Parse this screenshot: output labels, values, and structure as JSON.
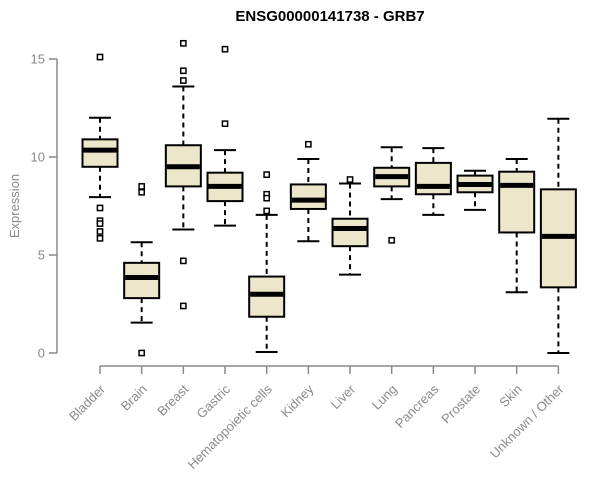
{
  "chart_data": {
    "type": "boxplot",
    "title": "ENSG00000141738 - GRB7",
    "ylabel": "Expression",
    "xlabel": "",
    "ylim": [
      0,
      15
    ],
    "yticks": [
      0,
      5,
      10,
      15
    ],
    "grid": false,
    "legend": "none",
    "categories": [
      "Bladder",
      "Brain",
      "Breast",
      "Gastric",
      "Hematopoietic cells",
      "Kidney",
      "Liver",
      "Lung",
      "Pancreas",
      "Prostate",
      "Skin",
      "Unknown / Other"
    ],
    "series": [
      {
        "name": "Bladder",
        "whisker_low": 7.95,
        "q1": 9.5,
        "median": 10.35,
        "q3": 10.9,
        "whisker_high": 12.0,
        "outliers": [
          15.1,
          7.4,
          6.75,
          6.6,
          6.2,
          5.85
        ]
      },
      {
        "name": "Brain",
        "whisker_low": 1.55,
        "q1": 2.8,
        "median": 3.85,
        "q3": 4.6,
        "whisker_high": 5.65,
        "outliers": [
          8.5,
          8.2,
          0.0
        ]
      },
      {
        "name": "Breast",
        "whisker_low": 6.3,
        "q1": 8.5,
        "median": 9.5,
        "q3": 10.6,
        "whisker_high": 13.6,
        "outliers": [
          15.8,
          14.4,
          13.9,
          4.7,
          2.4
        ]
      },
      {
        "name": "Gastric",
        "whisker_low": 6.5,
        "q1": 7.75,
        "median": 8.5,
        "q3": 9.2,
        "whisker_high": 10.35,
        "outliers": [
          15.5,
          11.7
        ]
      },
      {
        "name": "Hematopoietic cells",
        "whisker_low": 0.05,
        "q1": 1.85,
        "median": 3.0,
        "q3": 3.9,
        "whisker_high": 7.05,
        "outliers": [
          9.1,
          8.1,
          7.9,
          7.25
        ]
      },
      {
        "name": "Kidney",
        "whisker_low": 5.7,
        "q1": 7.35,
        "median": 7.8,
        "q3": 8.6,
        "whisker_high": 9.9,
        "outliers": [
          10.65
        ]
      },
      {
        "name": "Liver",
        "whisker_low": 4.0,
        "q1": 5.45,
        "median": 6.35,
        "q3": 6.85,
        "whisker_high": 8.65,
        "outliers": [
          8.85
        ]
      },
      {
        "name": "Lung",
        "whisker_low": 7.85,
        "q1": 8.5,
        "median": 9.0,
        "q3": 9.45,
        "whisker_high": 10.5,
        "outliers": [
          5.75
        ]
      },
      {
        "name": "Pancreas",
        "whisker_low": 7.05,
        "q1": 8.1,
        "median": 8.5,
        "q3": 9.7,
        "whisker_high": 10.45,
        "outliers": []
      },
      {
        "name": "Prostate",
        "whisker_low": 7.3,
        "q1": 8.2,
        "median": 8.6,
        "q3": 9.05,
        "whisker_high": 9.3,
        "outliers": []
      },
      {
        "name": "Skin",
        "whisker_low": 3.1,
        "q1": 6.15,
        "median": 8.55,
        "q3": 9.25,
        "whisker_high": 9.9,
        "outliers": []
      },
      {
        "name": "Unknown / Other",
        "whisker_low": 0.0,
        "q1": 3.35,
        "median": 5.95,
        "q3": 8.35,
        "whisker_high": 11.95,
        "outliers": []
      }
    ]
  },
  "colors": {
    "box_fill": "#ece7cb",
    "box_border": "#000000",
    "median": "#000000",
    "whisker": "#000000",
    "outlier_fill": "#ffffff",
    "axis": "#8a8a8a",
    "tick_label": "#8a8a8a",
    "title": "#000000",
    "background": "#ffffff"
  }
}
